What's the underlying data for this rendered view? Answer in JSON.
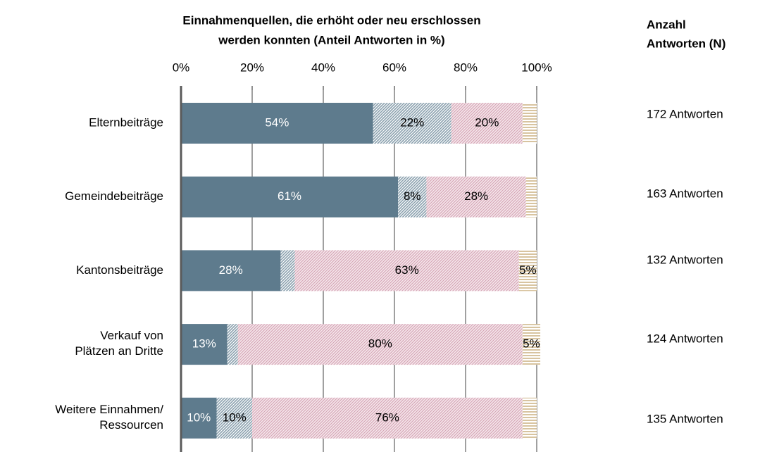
{
  "chart_data": {
    "type": "stacked-bar-horizontal",
    "title": [
      "Einnahmenquellen, die erhöht oder neu erschlossen",
      "werden konnten (Anteil Antworten in %)"
    ],
    "categories": [
      "Elternbeiträge",
      "Gemeindebeiträge",
      "Kantonsbeiträge",
      "Verkauf von\nPlätzen an Dritte",
      "Weitere Einnahmen/\nRessourcen"
    ],
    "series": [
      {
        "color": "#5e7b8d",
        "values": [
          54,
          61,
          28,
          13,
          10
        ],
        "value_labels": [
          "54%",
          "61%",
          "28%",
          "13%",
          "10%"
        ]
      },
      {
        "color": "#8aa0ae",
        "values": [
          22,
          8,
          4,
          3,
          10
        ],
        "value_labels": [
          "22%",
          "8%",
          null,
          null,
          "10%"
        ]
      },
      {
        "color": "#d6a6b6",
        "values": [
          20,
          28,
          63,
          80,
          76
        ],
        "value_labels": [
          "20%",
          "28%",
          "63%",
          "80%",
          "76%"
        ]
      },
      {
        "color": "#d8c4a0",
        "values": [
          4,
          3,
          5,
          5,
          4
        ],
        "value_labels": [
          null,
          null,
          "5%",
          "5%",
          null
        ]
      }
    ],
    "xlim": [
      0,
      100
    ],
    "xticks": [
      {
        "value": 0,
        "label": "0%"
      },
      {
        "value": 20,
        "label": "20%"
      },
      {
        "value": 40,
        "label": "40%"
      },
      {
        "value": 60,
        "label": "60%"
      },
      {
        "value": 80,
        "label": "80%"
      },
      {
        "value": 100,
        "label": "100%"
      }
    ],
    "grid": true,
    "n_header": [
      "Anzahl",
      "Antworten (N)"
    ],
    "n_labels": [
      "172 Antworten",
      "163 Antworten",
      "132 Antworten",
      "124 Antworten",
      "135 Antworten"
    ]
  }
}
